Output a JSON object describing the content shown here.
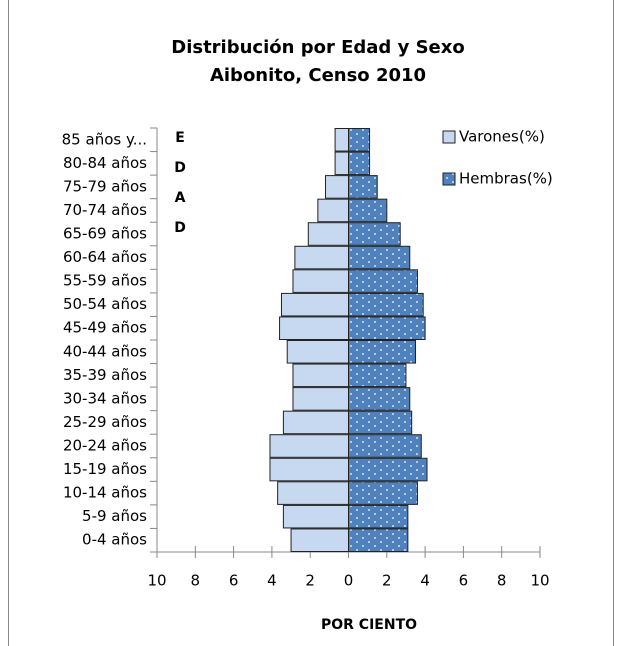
{
  "chart_data": {
    "type": "pyramid",
    "orientation": "horizontal",
    "title": "Distribución por Edad y Sexo",
    "subtitle": "Aibonito, Censo 2010",
    "x_label": "POR CIENTO",
    "y_label": "EDAD",
    "categories": [
      "0-4 años",
      "5-9 años",
      "10-14 años",
      "15-19 años",
      "20-24 años",
      "25-29 años",
      "30-34 años",
      "35-39 años",
      "40-44 años",
      "45-49 años",
      "50-54 años",
      "55-59 años",
      "60-64 años",
      "65-69 años",
      "70-74 años",
      "75-79 años",
      "80-84 años",
      "85 años y..."
    ],
    "series": [
      {
        "name": "Varones(%)",
        "color": "#c6d9f1",
        "values": [
          -3.0,
          -3.4,
          -3.7,
          -4.1,
          -4.1,
          -3.4,
          -2.9,
          -2.9,
          -3.2,
          -3.6,
          -3.5,
          -2.9,
          -2.8,
          -2.1,
          -1.6,
          -1.2,
          -0.7,
          -0.7
        ]
      },
      {
        "name": "Hembras(%)",
        "color": "#4f81bd",
        "values": [
          3.1,
          3.1,
          3.6,
          4.1,
          3.8,
          3.3,
          3.2,
          3.0,
          3.5,
          4.0,
          3.9,
          3.6,
          3.2,
          2.7,
          2.0,
          1.5,
          1.1,
          1.1
        ]
      }
    ],
    "xlim": [
      -10,
      10
    ],
    "xticks": [
      {
        "value": -10,
        "label": "10"
      },
      {
        "value": -8,
        "label": "8"
      },
      {
        "value": -6,
        "label": "6"
      },
      {
        "value": -4,
        "label": "4"
      },
      {
        "value": -2,
        "label": "2"
      },
      0,
      2,
      4,
      6,
      8,
      10
    ],
    "legend": "top-right",
    "grid": false
  }
}
